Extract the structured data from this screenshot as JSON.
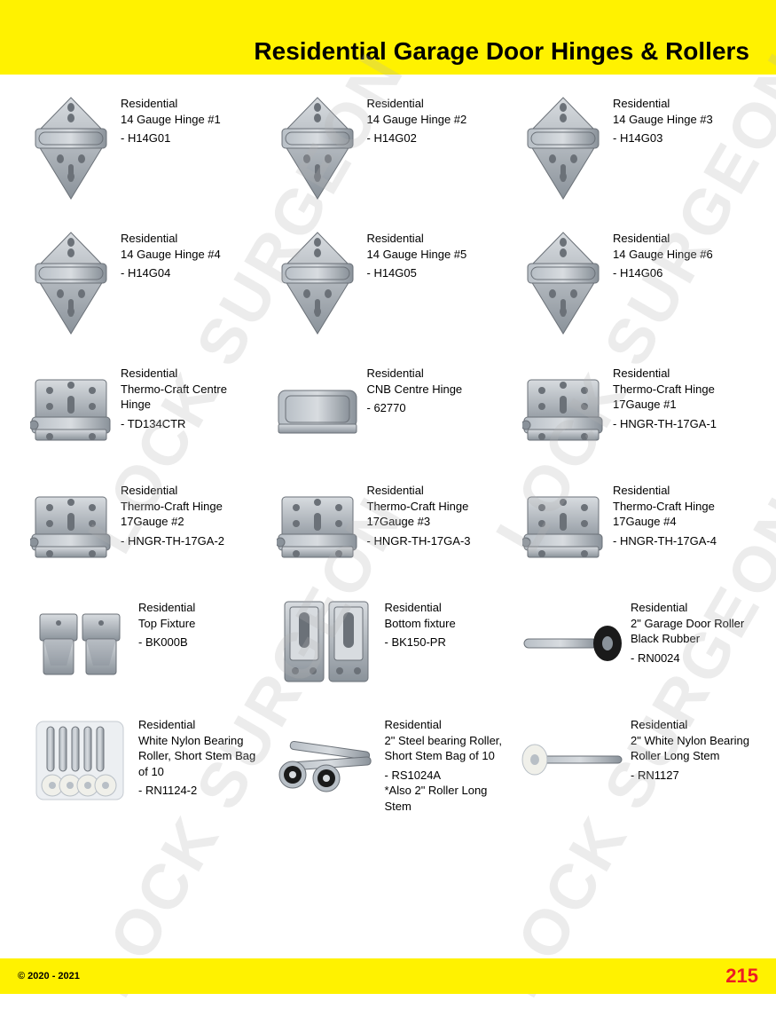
{
  "header": {
    "title": "Residential Garage Door Hinges & Rollers",
    "bg_color": "#fff200",
    "title_color": "#000000",
    "title_fontsize": 28
  },
  "watermark": {
    "text": "LOCK SURGEON",
    "color": "rgba(180,180,180,0.25)",
    "fontsize": 72
  },
  "products": [
    [
      {
        "category": "Residential",
        "name": "14 Gauge Hinge #1",
        "sku": "- H14G01",
        "icon": "hinge-diamond"
      },
      {
        "category": "Residential",
        "name": "14 Gauge Hinge #2",
        "sku": "- H14G02",
        "icon": "hinge-diamond"
      },
      {
        "category": "Residential",
        "name": "14 Gauge Hinge #3",
        "sku": "- H14G03",
        "icon": "hinge-diamond"
      }
    ],
    [
      {
        "category": "Residential",
        "name": "14 Gauge Hinge #4",
        "sku": "- H14G04",
        "icon": "hinge-diamond"
      },
      {
        "category": "Residential",
        "name": "14 Gauge Hinge #5",
        "sku": "- H14G05",
        "icon": "hinge-diamond"
      },
      {
        "category": "Residential",
        "name": "14 Gauge Hinge #6",
        "sku": "- H14G06",
        "icon": "hinge-diamond"
      }
    ],
    [
      {
        "category": "Residential",
        "name": "Thermo-Craft Centre Hinge",
        "sku": "- TD134CTR",
        "icon": "hinge-box"
      },
      {
        "category": "Residential",
        "name": "CNB Centre Hinge",
        "sku": "- 62770",
        "icon": "hinge-block"
      },
      {
        "category": "Residential",
        "name": "Thermo-Craft Hinge 17Gauge #1",
        "sku": "- HNGR-TH-17GA-1",
        "icon": "hinge-box"
      }
    ],
    [
      {
        "category": "Residential",
        "name": "Thermo-Craft Hinge 17Gauge #2",
        "sku": "- HNGR-TH-17GA-2",
        "icon": "hinge-box"
      },
      {
        "category": "Residential",
        "name": "Thermo-Craft Hinge 17Gauge #3",
        "sku": "- HNGR-TH-17GA-3",
        "icon": "hinge-box"
      },
      {
        "category": "Residential",
        "name": "Thermo-Craft Hinge 17Gauge #4",
        "sku": "- HNGR-TH-17GA-4",
        "icon": "hinge-box"
      }
    ],
    [
      {
        "category": "Residential",
        "name": "Top Fixture",
        "sku": "- BK000B",
        "icon": "fixture-top"
      },
      {
        "category": "Residential",
        "name": "Bottom fixture",
        "sku": "- BK150-PR",
        "icon": "fixture-bottom"
      },
      {
        "category": "Residential",
        "name": "2\" Garage Door Roller Black Rubber",
        "sku": "- RN0024",
        "icon": "roller-black"
      }
    ],
    [
      {
        "category": "Residential",
        "name": "White Nylon Bearing Roller, Short Stem Bag of 10",
        "sku": "- RN1124-2",
        "icon": "roller-bag"
      },
      {
        "category": "Residential",
        "name": "2\" Steel bearing Roller, Short Stem Bag of 10",
        "sku": "- RS1024A",
        "extra": "*Also 2\" Roller Long Stem",
        "icon": "roller-steel"
      },
      {
        "category": "Residential",
        "name": "2\" White Nylon Bearing Roller Long Stem",
        "sku": "- RN1127",
        "icon": "roller-long"
      }
    ]
  ],
  "footer": {
    "copyright": "© 2020 - 2021",
    "page_number": "215",
    "bg_color": "#fff200",
    "page_number_color": "#ed1c24"
  },
  "colors": {
    "metal_light": "#d8dce0",
    "metal_mid": "#b8bfc6",
    "metal_dark": "#8a929a",
    "metal_shadow": "#6b7178",
    "black": "#1a1a1a",
    "white_nylon": "#f0f0ea",
    "bag_tint": "#e8ecf0"
  }
}
